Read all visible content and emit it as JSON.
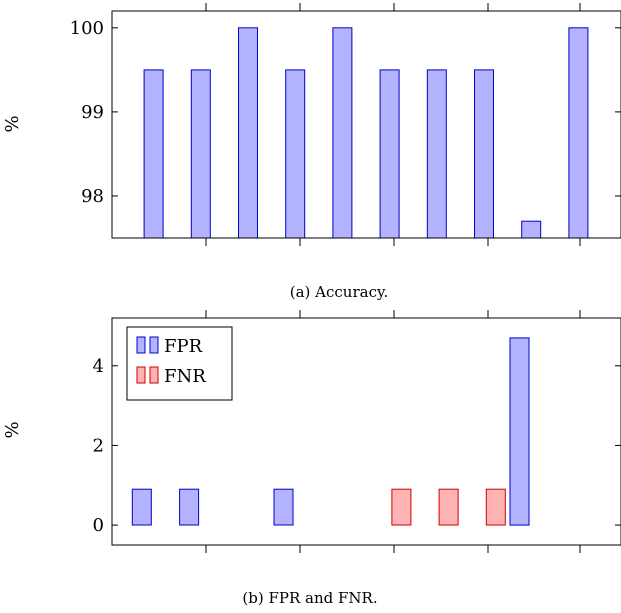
{
  "chart_data": [
    {
      "type": "bar",
      "caption": "(a) Accuracy.",
      "ylabel": "%",
      "ylim": [
        97.5,
        100.2
      ],
      "yticks": [
        98,
        99,
        100
      ],
      "x": [
        1,
        2,
        3,
        4,
        5,
        6,
        7,
        8,
        9,
        10
      ],
      "series": [
        {
          "values": [
            99.5,
            99.5,
            100,
            99.5,
            100,
            99.5,
            99.5,
            99.5,
            97.7,
            100
          ],
          "fill": "#b3b3ff",
          "stroke": "#0000cc"
        }
      ],
      "grid": false,
      "legend": "none"
    },
    {
      "type": "bar",
      "caption": "(b) FPR and FNR.",
      "ylabel": "%",
      "ylim": [
        -0.5,
        5.2
      ],
      "yticks": [
        0,
        2,
        4
      ],
      "x": [
        1,
        2,
        3,
        4,
        5,
        6,
        7,
        8,
        9,
        10
      ],
      "series": [
        {
          "name": "FPR",
          "values": [
            0.9,
            0.9,
            0,
            0.9,
            0,
            0,
            0,
            0,
            4.7,
            0
          ],
          "fill": "#b3b3ff",
          "stroke": "#0000cc"
        },
        {
          "name": "FNR",
          "values": [
            0,
            0,
            0,
            0,
            0,
            0.9,
            0.9,
            0.9,
            0,
            0
          ],
          "fill": "#ffb3b3",
          "stroke": "#cc0000"
        }
      ],
      "grid": false,
      "legend": "top-left"
    }
  ]
}
